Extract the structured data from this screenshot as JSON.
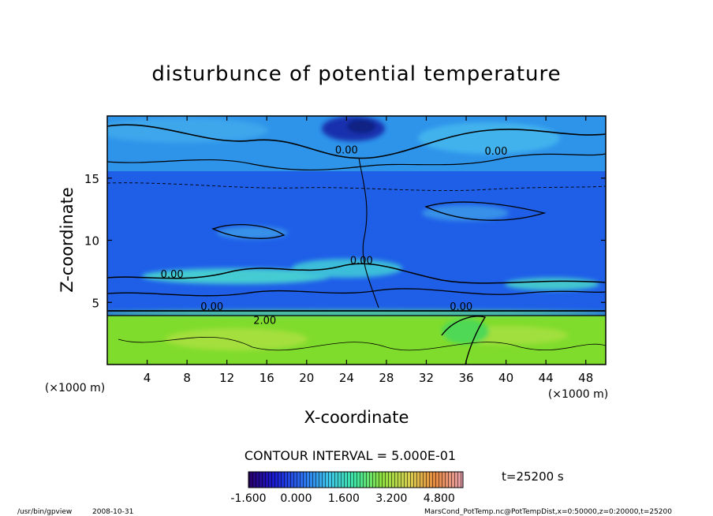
{
  "chart_data": {
    "type": "heatmap",
    "title": "disturbunce of potential temperature",
    "xlabel": "X-coordinate",
    "ylabel": "Z-coordinate",
    "x_unit_left": "(×1000 m)",
    "x_unit_right": "(×1000 m)",
    "xlim": [
      0,
      50
    ],
    "ylim": [
      0,
      20
    ],
    "xticks": [
      4,
      8,
      12,
      16,
      20,
      24,
      28,
      32,
      36,
      40,
      44,
      48
    ],
    "yticks": [
      5,
      10,
      15
    ],
    "contour_interval_label": "CONTOUR INTERVAL = 5.000E-01",
    "time_label": "t=25200 s",
    "colorbar": {
      "range": [
        -1.6,
        5.6
      ],
      "tick_labels": [
        "-1.600",
        "0.000",
        "1.600",
        "3.200",
        "4.800"
      ],
      "tick_values": [
        -1.6,
        0.0,
        1.6,
        3.2,
        4.8
      ]
    },
    "contour_labels": [
      {
        "text": "0.00",
        "x": 24.0,
        "z": 17.3
      },
      {
        "text": "0.00",
        "x": 39.0,
        "z": 17.2
      },
      {
        "text": "0.00",
        "x": 6.5,
        "z": 7.3
      },
      {
        "text": "0.00",
        "x": 25.5,
        "z": 8.4
      },
      {
        "text": "0.00",
        "x": 35.5,
        "z": 4.7
      },
      {
        "text": "0.00",
        "x": 10.5,
        "z": 4.7
      },
      {
        "text": "2.00",
        "x": 15.8,
        "z": 3.6
      }
    ],
    "region_values": [
      {
        "region": "lower layer z 0-4",
        "value": 2.0
      },
      {
        "region": "mid layer z 4-17",
        "value": 0.0
      },
      {
        "region": "upper layer z 17-20",
        "value": -0.5
      },
      {
        "region": "top anomaly near x=24-26",
        "value": -1.5
      }
    ],
    "colors": {
      "lower": "#7fdc2a",
      "mid": "#1e5ce6",
      "upper": "#2f9ae8",
      "cyan_patch": "#46e0d0",
      "dark": "#10208a"
    }
  },
  "footer": {
    "left_path": "/usr/bin/gpview",
    "left_date": "2008-10-31",
    "right_info": "MarsCond_PotTemp.nc@PotTempDist,x=0:50000,z=0:20000,t=25200"
  }
}
